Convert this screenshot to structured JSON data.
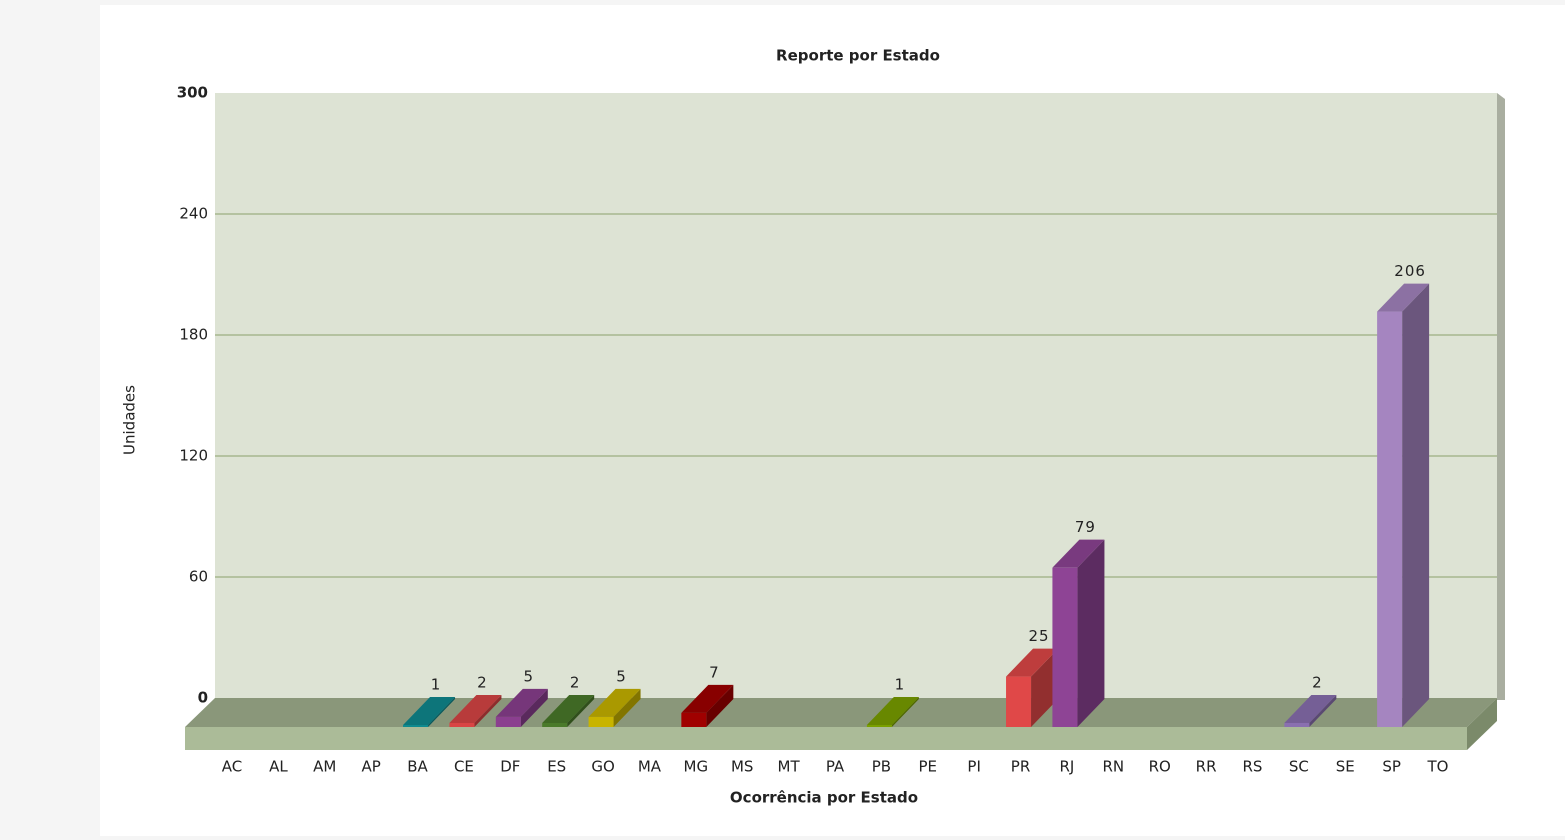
{
  "chart_data": {
    "type": "bar3d",
    "title": "Reporte por Estado",
    "x_label": "Ocorrência por Estado",
    "y_label": "Unidades",
    "categories": [
      "AC",
      "AL",
      "AM",
      "AP",
      "BA",
      "CE",
      "DF",
      "ES",
      "GO",
      "MA",
      "MG",
      "MS",
      "MT",
      "PA",
      "PB",
      "PE",
      "PI",
      "PR",
      "RJ",
      "RN",
      "RO",
      "RR",
      "RS",
      "SC",
      "SE",
      "SP",
      "TO"
    ],
    "values": [
      null,
      null,
      null,
      null,
      1,
      2,
      5,
      2,
      5,
      null,
      7,
      null,
      null,
      null,
      1,
      null,
      null,
      25,
      79,
      null,
      null,
      null,
      null,
      2,
      null,
      206,
      null
    ],
    "colors": [
      null,
      null,
      null,
      null,
      "#0f8a8f",
      "#d94545",
      "#8b3f8f",
      "#4a7a2a",
      "#c8b400",
      null,
      "#a00000",
      null,
      null,
      null,
      "#7aa000",
      null,
      null,
      "#e04848",
      "#8e4495",
      null,
      null,
      null,
      null,
      "#8a70b0",
      null,
      "#a585c0",
      null
    ],
    "ylim": [
      0,
      300
    ],
    "yticks": [
      0,
      60,
      120,
      180,
      240,
      300
    ],
    "grid": true
  }
}
